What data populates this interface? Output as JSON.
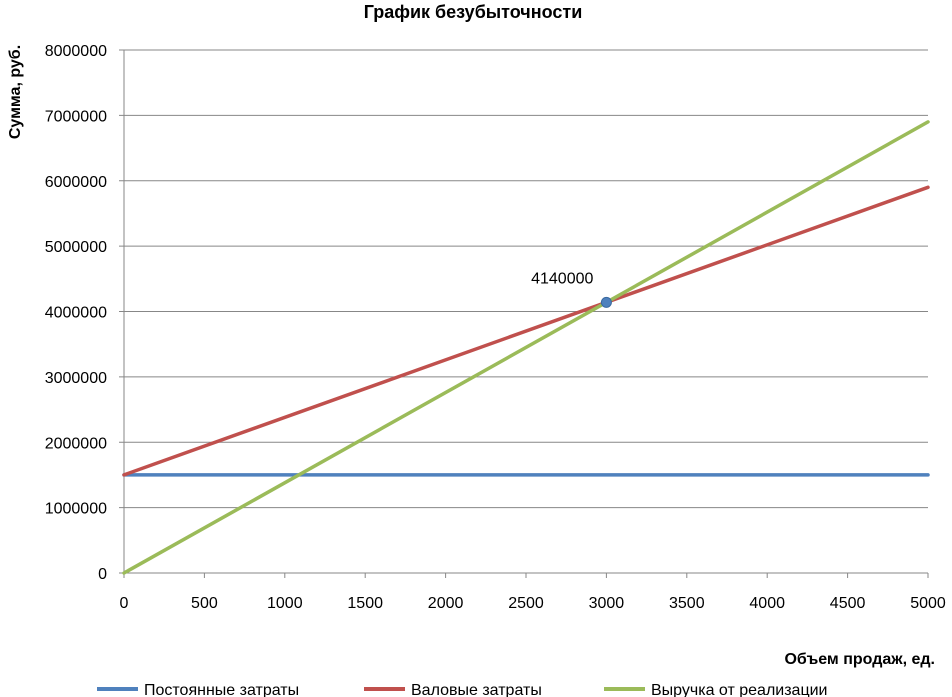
{
  "chart_data": {
    "type": "line",
    "title": "График безубыточности",
    "xlabel": "Объем продаж, ед.",
    "ylabel": "Сумма, руб.",
    "xlim": [
      0,
      5000
    ],
    "ylim": [
      0,
      8000000
    ],
    "x_ticks": [
      "0",
      "500",
      "1000",
      "1500",
      "2000",
      "2500",
      "3000",
      "3500",
      "4000",
      "4500",
      "5000"
    ],
    "y_ticks": [
      "0",
      "1000000",
      "2000000",
      "3000000",
      "4000000",
      "5000000",
      "6000000",
      "7000000",
      "8000000"
    ],
    "grid": "horizontal",
    "legend_position": "bottom",
    "x": [
      0,
      5000
    ],
    "series": [
      {
        "name": "Постоянные затраты",
        "color": "#4F81BD",
        "values": [
          1500000,
          1500000
        ]
      },
      {
        "name": "Валовые затраты",
        "color": "#C0504D",
        "values": [
          1500000,
          5900000
        ]
      },
      {
        "name": "Выручка от реализации",
        "color": "#9BBB59",
        "values": [
          0,
          6900000
        ]
      }
    ],
    "break_even": {
      "x": 3000,
      "y": 4140000,
      "label": "4140000",
      "color": "#4F81BD"
    }
  }
}
